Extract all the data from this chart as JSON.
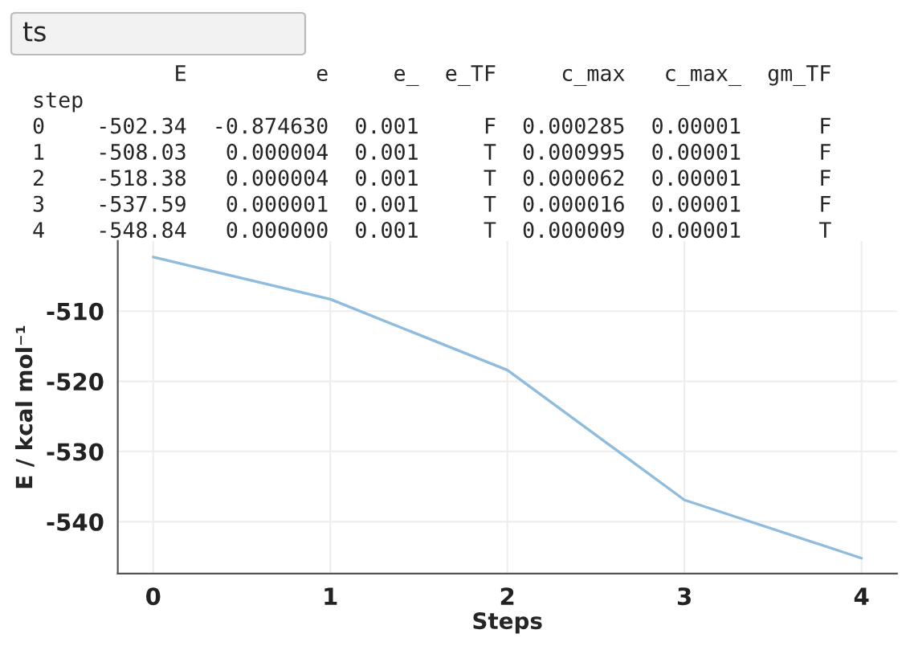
{
  "chart_data": {
    "type": "line",
    "xlabel": "Steps",
    "ylabel": "E / kcal mol⁻¹",
    "x": [
      0,
      1,
      2,
      3,
      4
    ],
    "series": [
      {
        "color": "#8fbcdc",
        "values": [
          -502.3,
          -508.3,
          -518.4,
          -536.9,
          -545.2
        ]
      }
    ],
    "xlim": [
      -0.2,
      4.2
    ],
    "xticks": [
      0,
      1,
      2,
      3,
      4
    ],
    "ylim": [
      -547.4,
      -500
    ],
    "yticks": [
      -510,
      -520,
      -530,
      -540
    ],
    "grid": true,
    "marker": "none",
    "line_style": "solid",
    "annotations": [
      "ts",
      "           E          e     e_  e_TF     c_max   c_max_  gm_TF",
      "step",
      "0    -502.34  -0.874630  0.001     F  0.000285  0.00001      F",
      "1    -508.03   0.000004  0.001     T  0.000995  0.00001      F",
      "2    -518.38   0.000004  0.001     T  0.000062  0.00001      F",
      "3    -537.59   0.000001  0.001     T  0.000016  0.00001      F",
      "4    -548.84   0.000000  0.001     T  0.000009  0.00001      T"
    ]
  }
}
